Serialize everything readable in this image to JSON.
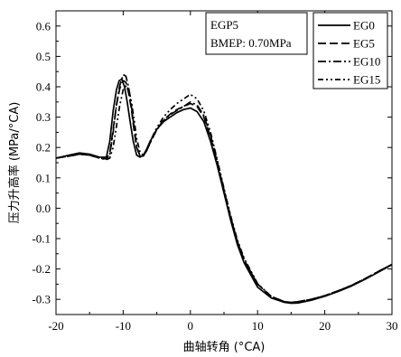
{
  "chart_data": {
    "type": "line",
    "title": "",
    "xlabel": "曲轴转角 (°CA)",
    "ylabel": "压力升高率 (MPa/°CA)",
    "xlim": [
      -20,
      30
    ],
    "ylim": [
      -0.35,
      0.65
    ],
    "xticks": [
      -20,
      -10,
      0,
      10,
      20,
      30
    ],
    "yticks": [
      -0.3,
      -0.2,
      -0.1,
      0.0,
      0.1,
      0.2,
      0.3,
      0.4,
      0.5,
      0.6
    ],
    "xtick_labels": [
      "-20",
      "-10",
      "0",
      "10",
      "20",
      "30"
    ],
    "ytick_labels": [
      "-0.3",
      "-0.2",
      "-0.1",
      "0.0",
      "0.1",
      "0.2",
      "0.3",
      "0.4",
      "0.5",
      "0.6"
    ],
    "grid": false,
    "legend_position": "top-right",
    "annotation": {
      "line1": "EGP5",
      "line2": "BMEP: 0.70MPa"
    },
    "series": [
      {
        "name": "EG0",
        "style": "solid",
        "x": [
          -20,
          -18,
          -16.5,
          -15,
          -13.5,
          -12.5,
          -12,
          -11.5,
          -11,
          -10.6,
          -10.2,
          -9.8,
          -9.4,
          -9,
          -8.5,
          -8,
          -7.5,
          -7,
          -6.5,
          -6,
          -5,
          -4,
          -3,
          -2,
          -1,
          0,
          1,
          2,
          3,
          4,
          5,
          6,
          7,
          8,
          10,
          12,
          14,
          15,
          16,
          18,
          20,
          22,
          24,
          26,
          28,
          30
        ],
        "y": [
          0.165,
          0.175,
          0.182,
          0.178,
          0.168,
          0.168,
          0.22,
          0.32,
          0.39,
          0.42,
          0.425,
          0.4,
          0.35,
          0.29,
          0.22,
          0.175,
          0.168,
          0.175,
          0.195,
          0.22,
          0.26,
          0.285,
          0.3,
          0.315,
          0.325,
          0.33,
          0.318,
          0.285,
          0.22,
          0.14,
          0.05,
          -0.04,
          -0.12,
          -0.18,
          -0.26,
          -0.295,
          -0.31,
          -0.313,
          -0.312,
          -0.303,
          -0.29,
          -0.274,
          -0.256,
          -0.234,
          -0.21,
          -0.186
        ]
      },
      {
        "name": "EG5",
        "style": "dash",
        "x": [
          -20,
          -18,
          -16.5,
          -15,
          -13.5,
          -12.5,
          -12,
          -11.5,
          -11,
          -10.5,
          -10,
          -9.6,
          -9.2,
          -8.8,
          -8.4,
          -8,
          -7.5,
          -7,
          -6.5,
          -6,
          -5,
          -4,
          -3,
          -2,
          -1,
          0,
          1,
          2,
          3,
          4,
          5,
          6,
          7,
          8,
          10,
          12,
          14,
          15,
          16,
          18,
          20,
          22,
          24,
          26,
          28,
          30
        ],
        "y": [
          0.165,
          0.172,
          0.178,
          0.175,
          0.165,
          0.163,
          0.18,
          0.26,
          0.34,
          0.395,
          0.42,
          0.415,
          0.38,
          0.33,
          0.26,
          0.2,
          0.172,
          0.172,
          0.19,
          0.215,
          0.26,
          0.29,
          0.31,
          0.325,
          0.335,
          0.345,
          0.335,
          0.3,
          0.235,
          0.15,
          0.06,
          -0.03,
          -0.11,
          -0.17,
          -0.25,
          -0.29,
          -0.308,
          -0.31,
          -0.308,
          -0.3,
          -0.288,
          -0.272,
          -0.254,
          -0.232,
          -0.208,
          -0.185
        ]
      },
      {
        "name": "EG10",
        "style": "dashdot",
        "x": [
          -20,
          -18,
          -16.5,
          -15,
          -13.5,
          -12.5,
          -12,
          -11.5,
          -11,
          -10.5,
          -10,
          -9.6,
          -9.2,
          -8.8,
          -8.4,
          -8,
          -7.5,
          -7,
          -6.5,
          -6,
          -5,
          -4,
          -3,
          -2,
          -1,
          0,
          1,
          2,
          3,
          4,
          5,
          6,
          7,
          8,
          10,
          12,
          14,
          15,
          16,
          18,
          20,
          22,
          24,
          26,
          28,
          30
        ],
        "y": [
          0.165,
          0.172,
          0.178,
          0.175,
          0.165,
          0.162,
          0.175,
          0.25,
          0.34,
          0.405,
          0.44,
          0.435,
          0.4,
          0.34,
          0.27,
          0.205,
          0.172,
          0.172,
          0.19,
          0.215,
          0.258,
          0.288,
          0.308,
          0.322,
          0.335,
          0.35,
          0.34,
          0.305,
          0.24,
          0.155,
          0.06,
          -0.03,
          -0.11,
          -0.17,
          -0.25,
          -0.29,
          -0.308,
          -0.31,
          -0.308,
          -0.3,
          -0.288,
          -0.272,
          -0.254,
          -0.232,
          -0.208,
          -0.185
        ]
      },
      {
        "name": "EG15",
        "style": "dashdotdot",
        "x": [
          -20,
          -18,
          -16.5,
          -15,
          -13.5,
          -12.5,
          -12,
          -11.5,
          -11,
          -10.5,
          -10,
          -9.5,
          -9.1,
          -8.7,
          -8.3,
          -8,
          -7.5,
          -7,
          -6.5,
          -6,
          -5,
          -4,
          -3,
          -2,
          -1,
          0,
          1,
          2,
          3,
          4,
          5,
          6,
          7,
          8,
          10,
          12,
          14,
          15,
          16,
          18,
          20,
          22,
          24,
          26,
          28,
          30
        ],
        "y": [
          0.165,
          0.172,
          0.178,
          0.175,
          0.165,
          0.16,
          0.165,
          0.2,
          0.27,
          0.34,
          0.39,
          0.405,
          0.385,
          0.34,
          0.28,
          0.23,
          0.185,
          0.175,
          0.19,
          0.22,
          0.265,
          0.3,
          0.325,
          0.345,
          0.36,
          0.375,
          0.36,
          0.32,
          0.25,
          0.16,
          0.065,
          -0.025,
          -0.105,
          -0.165,
          -0.248,
          -0.29,
          -0.308,
          -0.31,
          -0.308,
          -0.3,
          -0.288,
          -0.272,
          -0.254,
          -0.232,
          -0.208,
          -0.185
        ]
      }
    ]
  }
}
